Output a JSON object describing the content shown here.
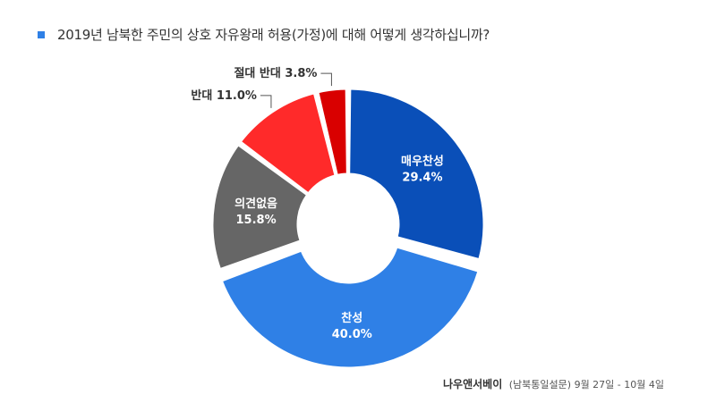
{
  "title": "2019년 남북한 주민의 상호 자유왕래 허용(가정)에 대해 어떻게 생각하십니까?",
  "source": {
    "org": "나우앤서베이",
    "detail": "(남북통일설문) 9월 27일  - 10월 4일"
  },
  "chart_data": {
    "type": "pie",
    "variant": "donut",
    "title": "2019년 남북한 주민의 상호 자유왕래 허용(가정)에 대해 어떻게 생각하십니까?",
    "slices": [
      {
        "label": "매우찬성",
        "value": 29.4,
        "value_label": "29.4%",
        "color": "#0a4fb8",
        "label_position": "inside"
      },
      {
        "label": "찬성",
        "value": 40.0,
        "value_label": "40.0%",
        "color": "#2f80e6",
        "label_position": "inside",
        "exploded": true
      },
      {
        "label": "의견없음",
        "value": 15.8,
        "value_label": "15.8%",
        "color": "#666666",
        "label_position": "inside"
      },
      {
        "label": "반대",
        "value": 11.0,
        "value_label": "11.0%",
        "color": "#ff2a2a",
        "label_position": "outside"
      },
      {
        "label": "절대 반대",
        "value": 3.8,
        "value_label": "3.8%",
        "color": "#d90000",
        "label_position": "outside"
      }
    ]
  }
}
